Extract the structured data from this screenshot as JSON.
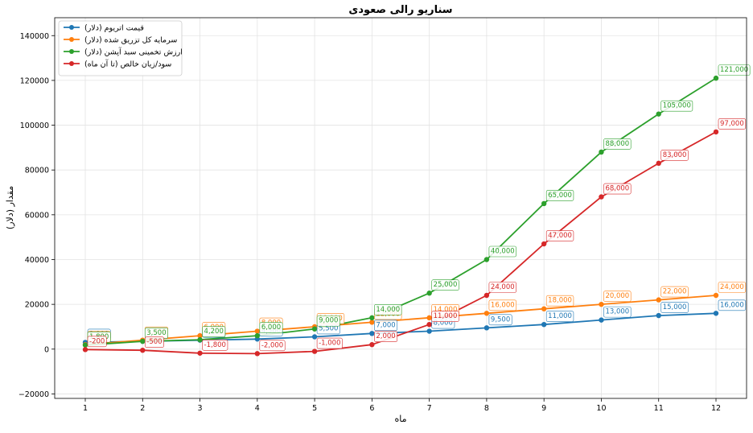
{
  "chart_data": {
    "type": "line",
    "title": "سناریو رالی صعودی",
    "xlabel": "ماه",
    "ylabel": "مقدار (دلار)",
    "x": [
      1,
      2,
      3,
      4,
      5,
      6,
      7,
      8,
      9,
      10,
      11,
      12
    ],
    "xticks": [
      "1",
      "2",
      "3",
      "4",
      "5",
      "6",
      "7",
      "8",
      "9",
      "10",
      "11",
      "12"
    ],
    "ylim": [
      -22000,
      148000
    ],
    "yticks": [
      "−20000",
      "0",
      "20000",
      "40000",
      "60000",
      "80000",
      "100000",
      "120000",
      "140000"
    ],
    "ytick_values": [
      -20000,
      0,
      20000,
      40000,
      60000,
      80000,
      100000,
      120000,
      140000
    ],
    "grid": true,
    "legend_position": "top-left",
    "series": [
      {
        "name": "قیمت اتریوم (دلار)",
        "color": "#1f77b4",
        "values": [
          3000,
          3500,
          4000,
          4500,
          5500,
          7000,
          8000,
          9500,
          11000,
          13000,
          15000,
          16000
        ],
        "labels": [
          "3,000",
          "3,500",
          "4,000",
          "4,500",
          "5,500",
          "7,000",
          "8,000",
          "9,500",
          "11,000",
          "13,000",
          "15,000",
          "16,000"
        ]
      },
      {
        "name": "سرمایه کل تزریق شده (دلار)",
        "color": "#ff7f0e",
        "values": [
          2000,
          4000,
          6000,
          8000,
          10000,
          12000,
          14000,
          16000,
          18000,
          20000,
          22000,
          24000
        ],
        "labels": [
          "2,000",
          "4,000",
          "6,000",
          "8,000",
          "10,000",
          "12,000",
          "14,000",
          "16,000",
          "18,000",
          "20,000",
          "22,000",
          "24,000"
        ]
      },
      {
        "name": "ارزش تخمینی سبد آپشن (دلار)",
        "color": "#2ca02c",
        "values": [
          1800,
          3500,
          4200,
          6000,
          9000,
          14000,
          25000,
          40000,
          65000,
          88000,
          105000,
          121000
        ],
        "labels": [
          "1,800",
          "3,500",
          "4,200",
          "6,000",
          "9,000",
          "14,000",
          "25,000",
          "40,000",
          "65,000",
          "88,000",
          "105,000",
          "121,000"
        ]
      },
      {
        "name": "سود/زیان خالص (تا آن ماه)",
        "color": "#d62728",
        "values": [
          -200,
          -500,
          -1800,
          -2000,
          -1000,
          2000,
          11000,
          24000,
          47000,
          68000,
          83000,
          97000
        ],
        "labels": [
          "-200",
          "-500",
          "-1,800",
          "-2,000",
          "-1,000",
          "2,000",
          "11,000",
          "24,000",
          "47,000",
          "68,000",
          "83,000",
          "97,000"
        ]
      }
    ]
  }
}
